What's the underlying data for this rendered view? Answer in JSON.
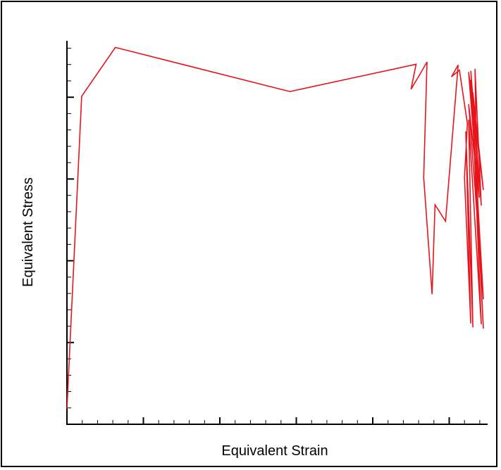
{
  "chart_data": {
    "type": "line",
    "title": "",
    "xlabel": "Equivalent Strain",
    "ylabel": "Equivalent Stress",
    "xlim": [
      0,
      1
    ],
    "ylim": [
      0,
      1
    ],
    "grid": false,
    "series": [
      {
        "color": "#e8141c",
        "x": [
          0.0,
          0.035,
          0.115,
          0.53,
          0.83,
          0.818,
          0.84,
          0.856,
          0.848,
          0.868,
          0.875,
          0.9,
          0.93,
          0.914,
          0.933,
          0.952,
          0.945,
          0.96,
          0.948,
          0.965,
          0.955,
          0.985,
          0.965,
          0.99,
          0.96,
          0.99,
          0.955,
          0.98,
          0.965,
          0.97,
          0.955,
          0.99,
          0.965,
          0.98,
          0.96,
          0.985,
          0.97,
          0.975
        ],
        "y": [
          0.04,
          0.84,
          0.965,
          0.852,
          0.922,
          0.858,
          0.898,
          0.928,
          0.632,
          0.333,
          0.562,
          0.52,
          0.92,
          0.89,
          0.907,
          0.77,
          0.632,
          0.258,
          0.75,
          0.248,
          0.78,
          0.256,
          0.79,
          0.245,
          0.882,
          0.32,
          0.82,
          0.58,
          0.72,
          0.69,
          0.902,
          0.6,
          0.85,
          0.58,
          0.905,
          0.56,
          0.91,
          0.59
        ]
      }
    ]
  }
}
